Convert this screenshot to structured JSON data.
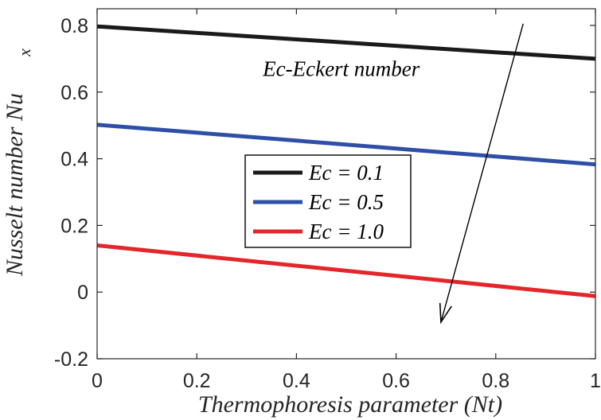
{
  "chart_data": {
    "type": "line",
    "title": "",
    "xlabel": "Thermophoresis parameter (Nt)",
    "ylabel": "Nusselt number Nu",
    "ylabel_subscript": "x",
    "xlim": [
      0,
      1
    ],
    "ylim": [
      -0.2,
      0.85
    ],
    "x_ticks": [
      0,
      0.2,
      0.4,
      0.6,
      0.8,
      1
    ],
    "x_tick_labels": [
      "0",
      "0.2",
      "0.4",
      "0.6",
      "0.8",
      "1"
    ],
    "y_ticks": [
      -0.2,
      0,
      0.2,
      0.4,
      0.6,
      0.8
    ],
    "y_tick_labels": [
      "-0.2",
      "0",
      "0.2",
      "0.4",
      "0.6",
      "0.8"
    ],
    "grid": false,
    "legend_position": "center-left",
    "series": [
      {
        "name": "Ec = 0.1",
        "color": "#1a1a1a",
        "x": [
          0,
          1
        ],
        "y": [
          0.797,
          0.7
        ]
      },
      {
        "name": "Ec = 0.5",
        "color": "#2f4fa6",
        "x": [
          0,
          1
        ],
        "y": [
          0.502,
          0.383
        ]
      },
      {
        "name": "Ec = 1.0",
        "color": "#e3262a",
        "x": [
          0,
          1
        ],
        "y": [
          0.14,
          -0.012
        ]
      }
    ],
    "annotations": [
      {
        "text": "Ec-Eckert number",
        "x": 0.49,
        "y": 0.67
      },
      {
        "type": "arrow",
        "from": [
          0.855,
          0.805
        ],
        "to": [
          0.69,
          -0.09
        ]
      }
    ]
  }
}
